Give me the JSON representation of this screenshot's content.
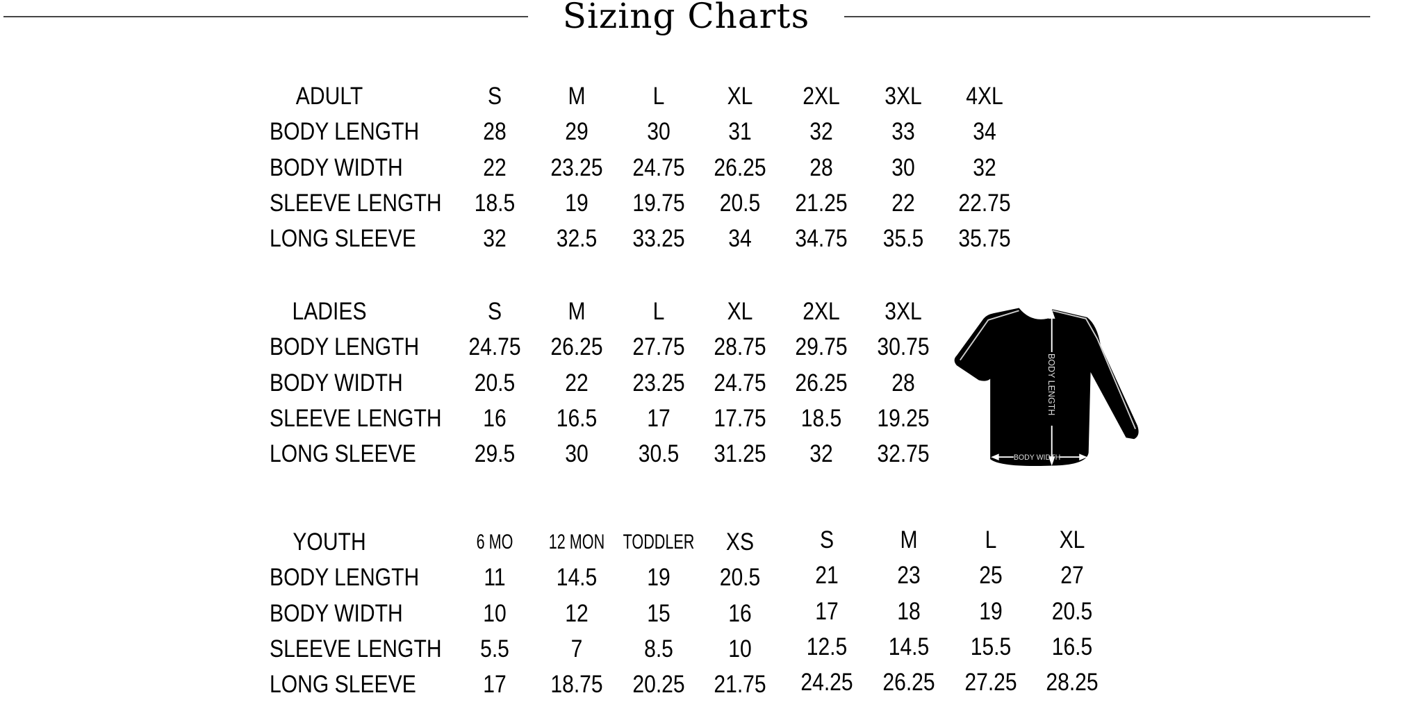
{
  "title": "Sizing Charts",
  "tables": [
    {
      "header": [
        "ADULT",
        "S",
        "M",
        "L",
        "XL",
        "2XL",
        "3XL",
        "4XL"
      ],
      "rows": [
        [
          "BODY LENGTH",
          "28",
          "29",
          "30",
          "31",
          "32",
          "33",
          "34"
        ],
        [
          "BODY WIDTH",
          "22",
          "23.25",
          "24.75",
          "26.25",
          "28",
          "30",
          "32"
        ],
        [
          "SLEEVE LENGTH",
          "18.5",
          "19",
          "19.75",
          "20.5",
          "21.25",
          "22",
          "22.75"
        ],
        [
          "LONG SLEEVE",
          "32",
          "32.5",
          "33.25",
          "34",
          "34.75",
          "35.5",
          "35.75"
        ]
      ]
    },
    {
      "header": [
        "LADIES",
        "S",
        "M",
        "L",
        "XL",
        "2XL",
        "3XL"
      ],
      "rows": [
        [
          "BODY LENGTH",
          "24.75",
          "26.25",
          "27.75",
          "28.75",
          "29.75",
          "30.75"
        ],
        [
          "BODY WIDTH",
          "20.5",
          "22",
          "23.25",
          "24.75",
          "26.25",
          "28"
        ],
        [
          "SLEEVE LENGTH",
          "16",
          "16.5",
          "17",
          "17.75",
          "18.5",
          "19.25"
        ],
        [
          "LONG SLEEVE",
          "29.5",
          "30",
          "30.5",
          "31.25",
          "32",
          "32.75"
        ]
      ]
    },
    {
      "header": [
        "YOUTH",
        "6 MO",
        "12 MON",
        "TODDLER",
        "XS",
        "S",
        "M",
        "L",
        "XL"
      ],
      "rows": [
        [
          "BODY LENGTH",
          "11",
          "14.5",
          "19",
          "20.5",
          "21",
          "23",
          "25",
          "27"
        ],
        [
          "BODY WIDTH",
          "10",
          "12",
          "15",
          "16",
          "17",
          "18",
          "19",
          "20.5"
        ],
        [
          "SLEEVE LENGTH",
          "5.5",
          "7",
          "8.5",
          "10",
          "12.5",
          "14.5",
          "15.5",
          "16.5"
        ],
        [
          "LONG SLEEVE",
          "17",
          "18.75",
          "20.25",
          "21.75",
          "24.25",
          "26.25",
          "27.25",
          "28.25"
        ]
      ]
    }
  ],
  "shirt_diagram": {
    "body_length_label": "BODY LENGTH",
    "body_width_label": "BODY WIDTH"
  }
}
